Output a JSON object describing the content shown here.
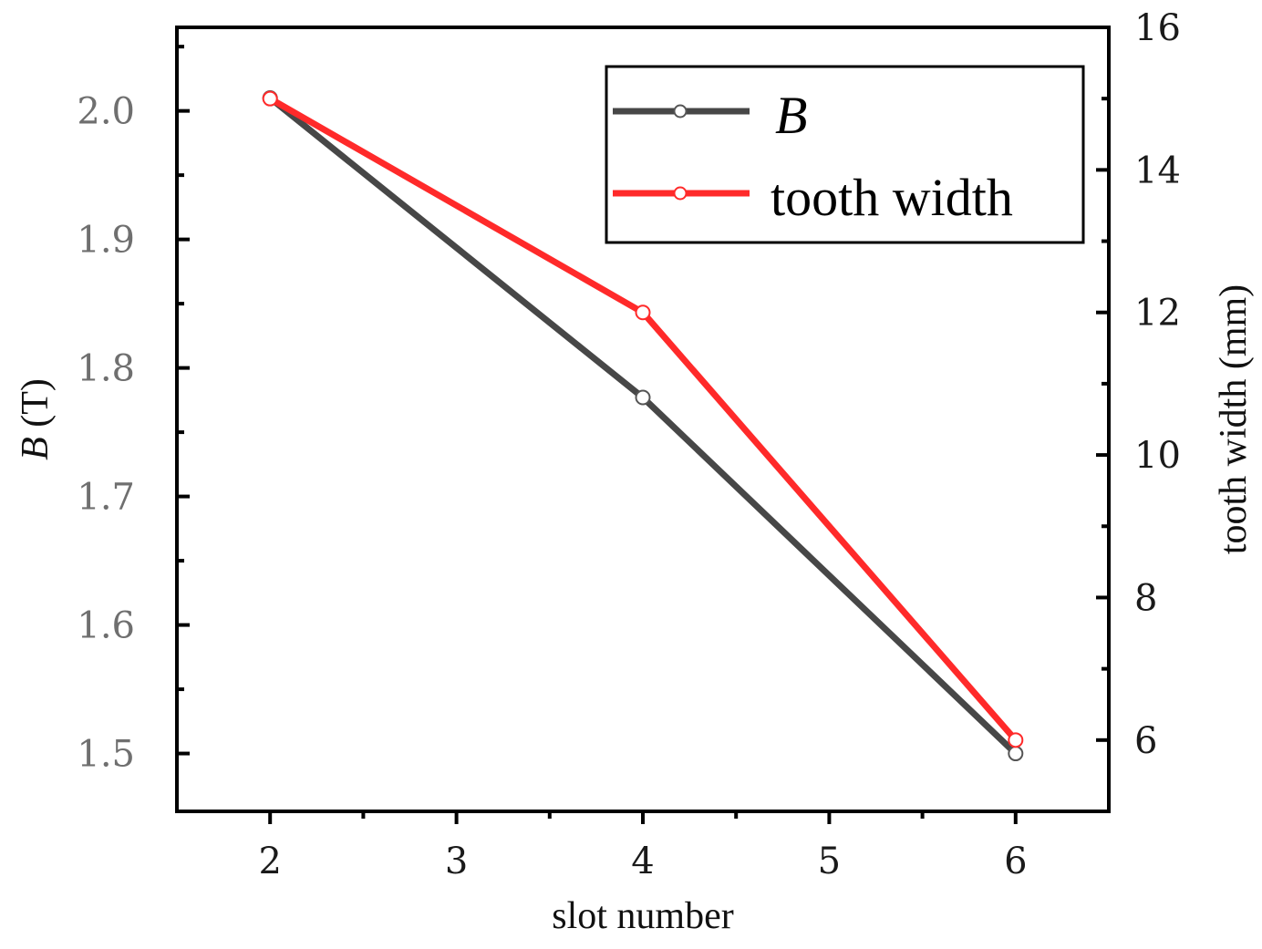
{
  "chart_data": {
    "type": "line",
    "x": [
      2,
      4,
      6
    ],
    "xlabel": "slot number",
    "xlim": [
      1.5,
      6.5
    ],
    "xticks": [
      2,
      3,
      4,
      5,
      6
    ],
    "xtick_labels": [
      "2",
      "3",
      "4",
      "5",
      "6"
    ],
    "ylabel_italic": "B",
    "ylabel_rest": " (T)",
    "ylim": [
      1.455,
      2.065
    ],
    "yticks": [
      1.5,
      1.6,
      1.7,
      1.8,
      1.9,
      2.0
    ],
    "ytick_labels": [
      "1.5",
      "1.6",
      "1.7",
      "1.8",
      "1.9",
      "2.0"
    ],
    "y2label": "tooth width (mm)",
    "y2lim": [
      5.0,
      16.0
    ],
    "y2ticks": [
      6,
      8,
      10,
      12,
      14,
      16
    ],
    "y2tick_labels": [
      "6",
      "8",
      "10",
      "12",
      "14",
      "16"
    ],
    "series": [
      {
        "name": "B",
        "axis": "left",
        "values": [
          2.01,
          1.777,
          1.5
        ],
        "color": "#474747",
        "marker_stroke": "#555555",
        "italic": true
      },
      {
        "name": "tooth width",
        "axis": "right",
        "values": [
          15.0,
          12.0,
          6.0
        ],
        "color": "#ff2a2a",
        "marker_stroke": "#ff2a2a",
        "italic": false
      }
    ],
    "legend_position": "top-right",
    "grid": false
  }
}
